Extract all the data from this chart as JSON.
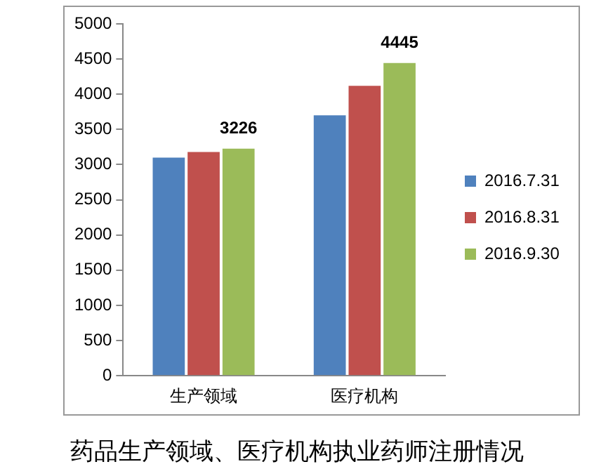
{
  "chart_data": {
    "type": "bar",
    "title": "药品生产领域、医疗机构执业药师注册情况",
    "categories": [
      "生产领域",
      "医疗机构"
    ],
    "series": [
      {
        "name": "2016.7.31",
        "color": "#4f81bd",
        "values": [
          3100,
          3700
        ]
      },
      {
        "name": "2016.8.31",
        "color": "#c0504d",
        "values": [
          3180,
          4120
        ]
      },
      {
        "name": "2016.9.30",
        "color": "#9bbb59",
        "values": [
          3226,
          4445
        ],
        "value_labels": [
          "3226",
          "4445"
        ]
      }
    ],
    "ylim": [
      0,
      5000
    ],
    "yticks": [
      0,
      500,
      1000,
      1500,
      2000,
      2500,
      3000,
      3500,
      4000,
      4500,
      5000
    ],
    "grid": false,
    "legend": "right"
  }
}
